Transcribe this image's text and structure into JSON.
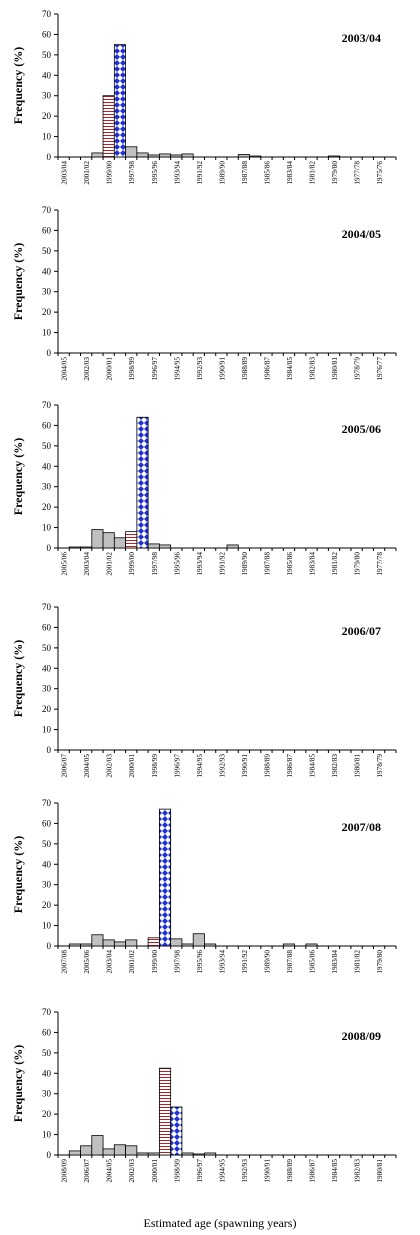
{
  "figure": {
    "xlabel": "Estimated age (spawning years)"
  },
  "chart_data": [
    {
      "type": "bar",
      "title": "2003/04",
      "ylabel": "Frequency (%)",
      "ylim": [
        0,
        70
      ],
      "yticks": [
        0,
        10,
        20,
        30,
        40,
        50,
        60,
        70
      ],
      "categories": [
        "2003/04",
        "2002/03",
        "2001/02",
        "2000/01",
        "1999/00",
        "1998/99",
        "1997/98",
        "1996/97",
        "1995/96",
        "1994/95",
        "1993/94",
        "1992/93",
        "1991/92",
        "1990/91",
        "1989/90",
        "1988/89",
        "1987/88",
        "1986/87",
        "1985/86",
        "1984/85",
        "1983/84",
        "1982/83",
        "1981/82",
        "1980/81",
        "1979/80",
        "1978/79",
        "1977/78",
        "1976/77",
        "1975/76",
        "1974/75"
      ],
      "tick_labels": [
        "2003/04",
        "",
        "2001/02",
        "",
        "1999/00",
        "",
        "1997/98",
        "",
        "1995/96",
        "",
        "1993/94",
        "",
        "1991/92",
        "",
        "1989/90",
        "",
        "1987/88",
        "",
        "1985/86",
        "",
        "1983/84",
        "",
        "1981/82",
        "",
        "1979/80",
        "",
        "1977/78",
        "",
        "1975/76",
        ""
      ],
      "values": [
        0,
        0,
        0,
        2,
        30,
        55,
        5,
        2,
        1,
        1.5,
        1,
        1.5,
        0,
        0,
        0,
        0,
        1.2,
        0.5,
        0,
        0,
        0,
        0,
        0,
        0,
        0.5,
        0,
        0,
        0,
        0,
        0
      ],
      "highlight": {
        "4": "hatched",
        "5": "checkered"
      }
    },
    {
      "type": "bar",
      "title": "2004/05",
      "ylabel": "Frequency (%)",
      "ylim": [
        0,
        70
      ],
      "yticks": [
        0,
        10,
        20,
        30,
        40,
        50,
        60,
        70
      ],
      "categories": [
        "2004/05",
        "2003/04",
        "2002/03",
        "2001/02",
        "2000/01",
        "1999/00",
        "1998/99",
        "1997/98",
        "1996/97",
        "1995/96",
        "1994/95",
        "1993/94",
        "1992/93",
        "1991/92",
        "1990/91",
        "1989/90",
        "1988/89",
        "1987/88",
        "1986/87",
        "1985/86",
        "1984/85",
        "1983/84",
        "1982/83",
        "1981/82",
        "1980/81",
        "1979/80",
        "1978/79",
        "1977/78",
        "1976/77",
        "1975/76"
      ],
      "tick_labels": [
        "2004/05",
        "",
        "2002/03",
        "",
        "2000/01",
        "",
        "1998/99",
        "",
        "1996/97",
        "",
        "1994/95",
        "",
        "1992/93",
        "",
        "1990/91",
        "",
        "1988/89",
        "",
        "1986/87",
        "",
        "1984/85",
        "",
        "1982/83",
        "",
        "1980/81",
        "",
        "1978/79",
        "",
        "1976/77",
        ""
      ],
      "values": [
        0,
        0,
        0,
        0,
        0,
        0,
        0,
        0,
        0,
        0,
        0,
        0,
        0,
        0,
        0,
        0,
        0,
        0,
        0,
        0,
        0,
        0,
        0,
        0,
        0,
        0,
        0,
        0,
        0,
        0
      ],
      "highlight": {}
    },
    {
      "type": "bar",
      "title": "2005/06",
      "ylabel": "Frequency (%)",
      "ylim": [
        0,
        70
      ],
      "yticks": [
        0,
        10,
        20,
        30,
        40,
        50,
        60,
        70
      ],
      "categories": [
        "2005/06",
        "2004/05",
        "2003/04",
        "2002/03",
        "2001/02",
        "2000/01",
        "1999/00",
        "1998/99",
        "1997/98",
        "1996/97",
        "1995/96",
        "1994/95",
        "1993/94",
        "1992/93",
        "1991/92",
        "1990/91",
        "1989/90",
        "1988/89",
        "1987/88",
        "1986/87",
        "1985/86",
        "1984/85",
        "1983/84",
        "1982/83",
        "1981/82",
        "1980/81",
        "1979/80",
        "1978/79",
        "1977/78",
        "1976/77"
      ],
      "tick_labels": [
        "2005/06",
        "",
        "2003/04",
        "",
        "2001/02",
        "",
        "1999/00",
        "",
        "1997/98",
        "",
        "1995/96",
        "",
        "1993/94",
        "",
        "1991/92",
        "",
        "1989/90",
        "",
        "1987/88",
        "",
        "1985/86",
        "",
        "1983/84",
        "",
        "1981/82",
        "",
        "1979/80",
        "",
        "1977/78",
        ""
      ],
      "values": [
        0,
        0.5,
        0.5,
        9,
        7.5,
        5,
        8,
        64,
        2,
        1.5,
        0,
        0,
        0,
        0,
        0,
        1.5,
        0,
        0,
        0,
        0,
        0,
        0,
        0,
        0,
        0,
        0,
        0,
        0,
        0,
        0
      ],
      "highlight": {
        "6": "hatched",
        "7": "checkered"
      }
    },
    {
      "type": "bar",
      "title": "2006/07",
      "ylabel": "Frequency (%)",
      "ylim": [
        0,
        70
      ],
      "yticks": [
        0,
        10,
        20,
        30,
        40,
        50,
        60,
        70
      ],
      "categories": [
        "2006/07",
        "2005/06",
        "2004/05",
        "2003/04",
        "2002/03",
        "2001/02",
        "2000/01",
        "1999/00",
        "1998/99",
        "1997/98",
        "1996/97",
        "1995/96",
        "1994/95",
        "1993/94",
        "1992/93",
        "1991/92",
        "1990/91",
        "1989/90",
        "1988/89",
        "1987/88",
        "1986/87",
        "1985/86",
        "1984/85",
        "1983/84",
        "1982/83",
        "1981/82",
        "1980/81",
        "1979/80",
        "1978/79",
        "1977/78"
      ],
      "tick_labels": [
        "2006/07",
        "",
        "2004/05",
        "",
        "2002/03",
        "",
        "2000/01",
        "",
        "1998/99",
        "",
        "1996/97",
        "",
        "1994/95",
        "",
        "1992/93",
        "",
        "1990/91",
        "",
        "1988/89",
        "",
        "1986/87",
        "",
        "1984/85",
        "",
        "1982/83",
        "",
        "1980/81",
        "",
        "1978/79",
        ""
      ],
      "values": [
        0,
        0,
        0,
        0,
        0,
        0,
        0,
        0,
        0,
        0,
        0,
        0,
        0,
        0,
        0,
        0,
        0,
        0,
        0,
        0,
        0,
        0,
        0,
        0,
        0,
        0,
        0,
        0,
        0,
        0
      ],
      "highlight": {}
    },
    {
      "type": "bar",
      "title": "2007/08",
      "ylabel": "Frequency (%)",
      "ylim": [
        0,
        70
      ],
      "yticks": [
        0,
        10,
        20,
        30,
        40,
        50,
        60,
        70
      ],
      "categories": [
        "2007/08",
        "2006/07",
        "2005/06",
        "2004/05",
        "2003/04",
        "2002/03",
        "2001/02",
        "2000/01",
        "1999/00",
        "1998/99",
        "1997/98",
        "1996/97",
        "1995/96",
        "1994/95",
        "1993/94",
        "1992/93",
        "1991/92",
        "1990/91",
        "1989/90",
        "1988/89",
        "1987/88",
        "1986/87",
        "1985/86",
        "1984/85",
        "1983/84",
        "1982/83",
        "1981/82",
        "1980/81",
        "1979/80",
        "1978/79"
      ],
      "tick_labels": [
        "2007/08",
        "",
        "2005/06",
        "",
        "2003/04",
        "",
        "2001/02",
        "",
        "1999/00",
        "",
        "1997/98",
        "",
        "1995/96",
        "",
        "1993/94",
        "",
        "1991/92",
        "",
        "1989/90",
        "",
        "1987/88",
        "",
        "1985/86",
        "",
        "1983/84",
        "",
        "1981/82",
        "",
        "1979/80",
        ""
      ],
      "values": [
        0,
        1,
        1,
        5.5,
        3,
        2,
        3,
        0,
        4,
        67,
        3.5,
        1,
        6,
        1,
        0,
        0,
        0,
        0,
        0,
        0,
        1,
        0,
        1,
        0,
        0,
        0,
        0,
        0,
        0,
        0
      ],
      "highlight": {
        "8": "hatched",
        "9": "checkered"
      }
    },
    {
      "type": "bar",
      "title": "2008/09",
      "ylabel": "Frequency (%)",
      "ylim": [
        0,
        70
      ],
      "yticks": [
        0,
        10,
        20,
        30,
        40,
        50,
        60,
        70
      ],
      "categories": [
        "2008/09",
        "2007/08",
        "2006/07",
        "2005/06",
        "2004/05",
        "2003/04",
        "2002/03",
        "2001/02",
        "2000/01",
        "1999/00",
        "1998/99",
        "1997/98",
        "1996/97",
        "1995/96",
        "1994/95",
        "1993/94",
        "1992/93",
        "1991/92",
        "1990/91",
        "1989/90",
        "1988/89",
        "1987/88",
        "1986/87",
        "1985/86",
        "1984/85",
        "1983/84",
        "1982/83",
        "1981/82",
        "1980/81",
        "1979/80"
      ],
      "tick_labels": [
        "2008/09",
        "",
        "2006/07",
        "",
        "2004/05",
        "",
        "2002/03",
        "",
        "2000/01",
        "",
        "1998/99",
        "",
        "1996/97",
        "",
        "1994/95",
        "",
        "1992/93",
        "",
        "1990/91",
        "",
        "1988/89",
        "",
        "1986/87",
        "",
        "1984/85",
        "",
        "1982/83",
        "",
        "1980/81",
        ""
      ],
      "values": [
        0,
        2,
        4.5,
        9.5,
        3,
        5,
        4.5,
        1,
        1,
        42.5,
        23.5,
        1,
        0.5,
        1,
        0,
        0,
        0,
        0,
        0,
        0,
        0,
        0,
        0,
        0,
        0,
        0,
        0,
        0,
        0,
        0
      ],
      "highlight": {
        "9": "hatched",
        "10": "checkered"
      }
    }
  ]
}
